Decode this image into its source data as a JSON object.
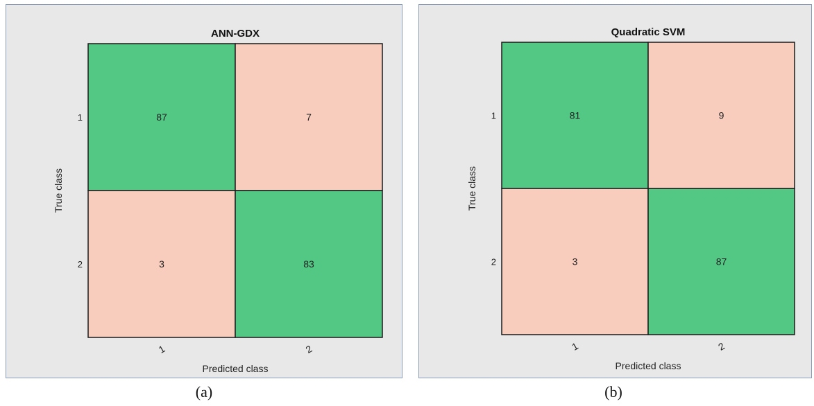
{
  "chart_data": [
    {
      "type": "heatmap",
      "title": "ANN-GDX",
      "xlabel": "Predicted class",
      "ylabel": "True class",
      "x_ticks": [
        "1",
        "2"
      ],
      "y_ticks": [
        "1",
        "2"
      ],
      "matrix": [
        [
          87,
          7
        ],
        [
          3,
          83
        ]
      ],
      "diagonal_color": "#53c784",
      "offdiagonal_color": "#f8cdbd"
    },
    {
      "type": "heatmap",
      "title": "Quadratic SVM",
      "xlabel": "Predicted class",
      "ylabel": "True class",
      "x_ticks": [
        "1",
        "2"
      ],
      "y_ticks": [
        "1",
        "2"
      ],
      "matrix": [
        [
          81,
          9
        ],
        [
          3,
          87
        ]
      ],
      "diagonal_color": "#53c784",
      "offdiagonal_color": "#f8cdbd"
    }
  ],
  "captions": [
    "(a)",
    "(b)"
  ]
}
